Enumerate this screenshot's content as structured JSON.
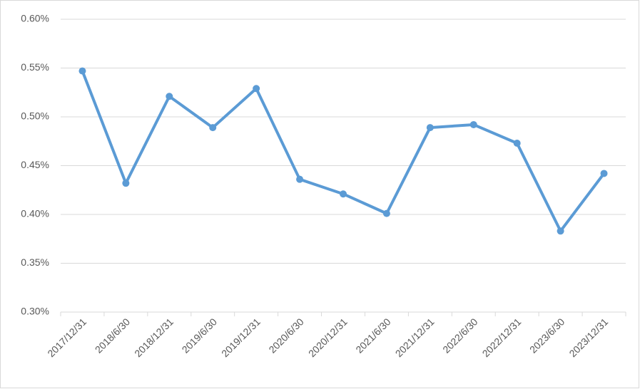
{
  "chart_data": {
    "type": "line",
    "categories": [
      "2017/12/31",
      "2018/6/30",
      "2018/12/31",
      "2019/6/30",
      "2019/12/31",
      "2020/6/30",
      "2020/12/31",
      "2021/6/30",
      "2021/12/31",
      "2022/6/30",
      "2022/12/31",
      "2023/6/30",
      "2023/12/31"
    ],
    "series": [
      {
        "color": "#5b9bd5",
        "values": [
          0.547,
          0.432,
          0.521,
          0.489,
          0.529,
          0.436,
          0.421,
          0.401,
          0.489,
          0.492,
          0.473,
          0.383,
          0.442
        ]
      }
    ],
    "ylim": [
      0.3,
      0.6
    ],
    "yticks": [
      {
        "value": 0.3,
        "label": "0.30%"
      },
      {
        "value": 0.35,
        "label": "0.35%"
      },
      {
        "value": 0.4,
        "label": "0.40%"
      },
      {
        "value": 0.45,
        "label": "0.45%"
      },
      {
        "value": 0.5,
        "label": "0.50%"
      },
      {
        "value": 0.55,
        "label": "0.55%"
      },
      {
        "value": 0.6,
        "label": "0.60%"
      }
    ],
    "grid": true
  }
}
